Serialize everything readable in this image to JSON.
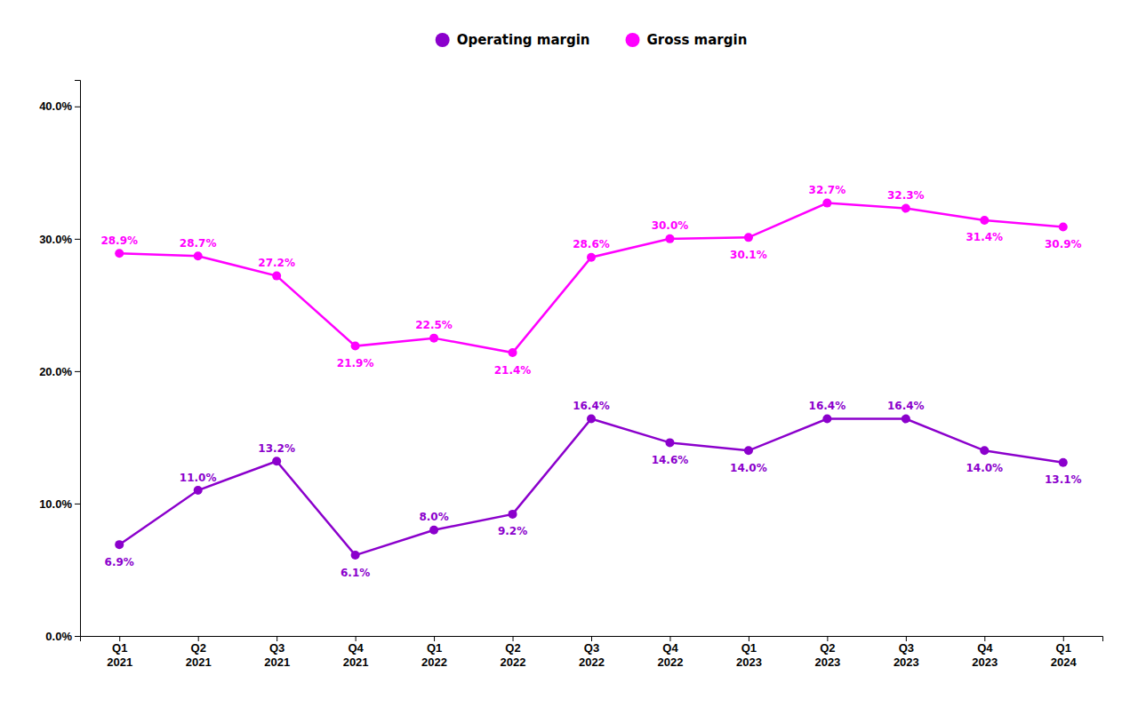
{
  "chart_data": {
    "type": "line",
    "categories": [
      "Q1\n2021",
      "Q2\n2021",
      "Q3\n2021",
      "Q4\n2021",
      "Q1\n2022",
      "Q2\n2022",
      "Q3\n2022",
      "Q4\n2022",
      "Q1\n2023",
      "Q2\n2023",
      "Q3\n2023",
      "Q4\n2023",
      "Q1\n2024"
    ],
    "series": [
      {
        "name": "Operating margin",
        "color": "#8B00CC",
        "values": [
          6.9,
          11.0,
          13.2,
          6.1,
          8.0,
          9.2,
          16.4,
          14.6,
          14.0,
          16.4,
          16.4,
          14.0,
          13.1
        ],
        "value_labels": [
          "6.9%",
          "11.0%",
          "13.2%",
          "6.1%",
          "8.0%",
          "9.2%",
          "16.4%",
          "14.6%",
          "14.0%",
          "16.4%",
          "16.4%",
          "14.0%",
          "13.1%"
        ]
      },
      {
        "name": "Gross margin",
        "color": "#FF00FF",
        "values": [
          28.9,
          28.7,
          27.2,
          21.9,
          22.5,
          21.4,
          28.6,
          30.0,
          30.1,
          32.7,
          32.3,
          31.4,
          30.9
        ],
        "value_labels": [
          "28.9%",
          "28.7%",
          "27.2%",
          "21.9%",
          "22.5%",
          "21.4%",
          "28.6%",
          "30.0%",
          "30.1%",
          "32.7%",
          "32.3%",
          "31.4%",
          "30.9%"
        ]
      }
    ],
    "ylim": [
      0,
      42
    ],
    "yticks": [
      {
        "value": 0.0,
        "label": "0.0%"
      },
      {
        "value": 10.0,
        "label": "10.0%"
      },
      {
        "value": 20.0,
        "label": "20.0%"
      },
      {
        "value": 30.0,
        "label": "30.0%"
      },
      {
        "value": 40.0,
        "label": "40.0%"
      }
    ],
    "grid": false,
    "legend": "top",
    "marker": "circle",
    "data_labels": true
  }
}
